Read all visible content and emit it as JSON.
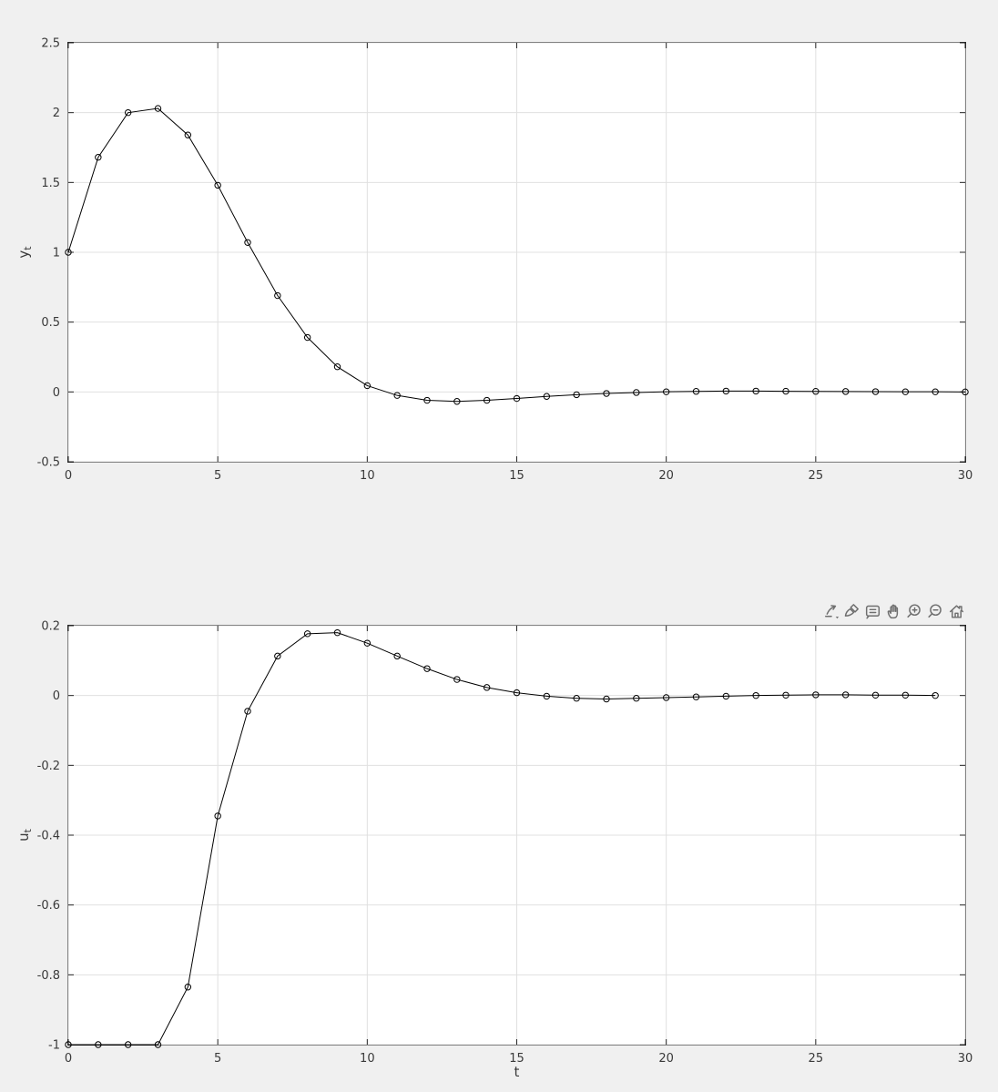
{
  "figure": {
    "background": "#f0f0f0",
    "axes_background": "#ffffff",
    "axis_color": "#262626",
    "grid_color": "#e0e0e0",
    "tick_label_color": "#3a3a3a",
    "toolbar_icon_color": "#6e6e6e"
  },
  "toolbar": {
    "icons": [
      {
        "id": "export"
      },
      {
        "id": "brush"
      },
      {
        "id": "datatips"
      },
      {
        "id": "pan"
      },
      {
        "id": "zoom-in"
      },
      {
        "id": "zoom-out"
      },
      {
        "id": "home"
      }
    ]
  },
  "chart_data": [
    {
      "type": "line",
      "title": "",
      "xlabel": "",
      "ylabel": "y_t",
      "xlim": [
        0,
        30
      ],
      "ylim": [
        -0.5,
        2.5
      ],
      "xticks": [
        0,
        5,
        10,
        15,
        20,
        25,
        30
      ],
      "yticks": [
        -0.5,
        0,
        0.5,
        1,
        1.5,
        2,
        2.5
      ],
      "grid": true,
      "marker": "o",
      "line_color": "#000000",
      "x": [
        0,
        1,
        2,
        3,
        4,
        5,
        6,
        7,
        8,
        9,
        10,
        11,
        12,
        13,
        14,
        15,
        16,
        17,
        18,
        19,
        20,
        21,
        22,
        23,
        24,
        25,
        26,
        27,
        28,
        29,
        30
      ],
      "series": [
        {
          "name": "y",
          "values": [
            1.0,
            1.68,
            2.0,
            2.03,
            1.84,
            1.48,
            1.07,
            0.69,
            0.39,
            0.18,
            0.045,
            -0.025,
            -0.06,
            -0.068,
            -0.06,
            -0.047,
            -0.032,
            -0.02,
            -0.011,
            -0.004,
            0.001,
            0.004,
            0.006,
            0.006,
            0.005,
            0.004,
            0.003,
            0.002,
            0.001,
            0.001,
            0.0
          ]
        }
      ]
    },
    {
      "type": "line",
      "title": "",
      "xlabel": "t",
      "ylabel": "u_t",
      "xlim": [
        0,
        30
      ],
      "ylim": [
        -1,
        0.2
      ],
      "xticks": [
        0,
        5,
        10,
        15,
        20,
        25,
        30
      ],
      "yticks": [
        -1,
        -0.8,
        -0.6,
        -0.4,
        -0.2,
        0,
        0.2
      ],
      "grid": true,
      "marker": "o",
      "line_color": "#000000",
      "x": [
        0,
        1,
        2,
        3,
        4,
        5,
        6,
        7,
        8,
        9,
        10,
        11,
        12,
        13,
        14,
        15,
        16,
        17,
        18,
        19,
        20,
        21,
        22,
        23,
        24,
        25,
        26,
        27,
        28,
        29
      ],
      "series": [
        {
          "name": "u",
          "values": [
            -1.0,
            -1.0,
            -1.0,
            -1.0,
            -0.835,
            -0.345,
            -0.045,
            0.113,
            0.177,
            0.18,
            0.15,
            0.113,
            0.077,
            0.046,
            0.023,
            0.008,
            -0.002,
            -0.008,
            -0.01,
            -0.008,
            -0.006,
            -0.004,
            -0.002,
            0.0,
            0.001,
            0.002,
            0.002,
            0.001,
            0.001,
            0.0
          ]
        }
      ]
    }
  ]
}
